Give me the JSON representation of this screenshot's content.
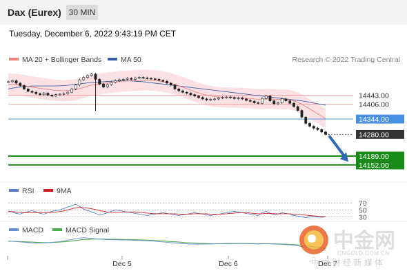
{
  "header": {
    "title": "Dax (Eurex)",
    "interval": "30 MIN"
  },
  "datetime": "Tuesday, December 6, 2022 9:43:19 PM CET",
  "legend": {
    "ma20": "MA 20 + Bollinger Bands",
    "ma50": "MA 50",
    "copyright": "Research © 2022 Trading Central"
  },
  "rsi_legend": {
    "rsi": "RSI",
    "ma9": "9MA"
  },
  "macd_legend": {
    "macd": "MACD",
    "signal": "MACD Signal"
  },
  "colors": {
    "ma20": "#f08080",
    "ma50": "#3b5ea8",
    "band": "#fbd9dd",
    "blue_level": "#4a90e2",
    "green_level": "#1a8a1a",
    "dark_level": "#333333",
    "arrow": "#2d6ab0",
    "rsi_line": "#5b7fd1",
    "ma9_line": "#cc2222",
    "macd_line": "#6a8fd8",
    "signal_line": "#4caf50"
  },
  "watermark": {
    "name": "中金网",
    "url": "CNGOLD.COM.CN",
    "tagline": "中 文 财 经 新 媒 体"
  },
  "chart_data": [
    {
      "type": "line",
      "title": "Dax (Eurex) 30 MIN",
      "ylim": [
        14100,
        14560
      ],
      "x_ticks": [
        "Dec 5",
        "Dec 6",
        "Dec 7"
      ],
      "levels": [
        {
          "value": 14443.0,
          "label": "14443.00",
          "style": "resistance"
        },
        {
          "value": 14406.0,
          "label": "14406.00",
          "style": "resistance"
        },
        {
          "value": 14344.0,
          "label": "14344.00",
          "style": "pivot"
        },
        {
          "value": 14280.0,
          "label": "14280.00",
          "style": "last"
        },
        {
          "value": 14189.0,
          "label": "14189.00",
          "style": "target"
        },
        {
          "value": 14152.0,
          "label": "14152.00",
          "style": "target"
        }
      ],
      "price": [
        14500,
        14504,
        14494,
        14484,
        14470,
        14460,
        14456,
        14450,
        14446,
        14452,
        14444,
        14440,
        14446,
        14448,
        14450,
        14456,
        14470,
        14486,
        14508,
        14518,
        14526,
        14532,
        14510,
        14490,
        14478,
        14488,
        14498,
        14504,
        14508,
        14510,
        14514,
        14510,
        14516,
        14518,
        14516,
        14514,
        14512,
        14510,
        14506,
        14502,
        14494,
        14486,
        14470,
        14462,
        14456,
        14452,
        14446,
        14440,
        14434,
        14428,
        14424,
        14426,
        14428,
        14432,
        14434,
        14436,
        14434,
        14430,
        14432,
        14428,
        14422,
        14418,
        14412,
        14410,
        14430,
        14440,
        14420,
        14408,
        14412,
        14428,
        14420,
        14410,
        14396,
        14380,
        14352,
        14326,
        14314,
        14306,
        14300,
        14290,
        14280
      ],
      "ma20": [
        14490,
        14489,
        14488,
        14486,
        14484,
        14481,
        14478,
        14475,
        14472,
        14470,
        14468,
        14466,
        14464,
        14463,
        14462,
        14463,
        14464,
        14467,
        14471,
        14476,
        14481,
        14486,
        14489,
        14491,
        14493,
        14495,
        14497,
        14499,
        14501,
        14502,
        14503,
        14504,
        14505,
        14506,
        14507,
        14507,
        14506,
        14505,
        14503,
        14500,
        14497,
        14493,
        14488,
        14483,
        14477,
        14471,
        14465,
        14459,
        14453,
        14448,
        14444,
        14441,
        14438,
        14436,
        14435,
        14434,
        14434,
        14433,
        14433,
        14432,
        14431,
        14430,
        14428,
        14427,
        14427,
        14428,
        14428,
        14427,
        14426,
        14426,
        14426,
        14424,
        14420,
        14414,
        14406,
        14396,
        14386,
        14376,
        14366,
        14356,
        14346
      ],
      "ma50": [
        14470,
        14473,
        14476,
        14478,
        14480,
        14481,
        14482,
        14482,
        14482,
        14482,
        14482,
        14482,
        14482,
        14483,
        14484,
        14485,
        14487,
        14489,
        14491,
        14493,
        14495,
        14497,
        14498,
        14499,
        14500,
        14501,
        14502,
        14503,
        14504,
        14504,
        14504,
        14503,
        14502,
        14501,
        14500,
        14498,
        14496,
        14494,
        14492,
        14490,
        14488,
        14486,
        14484,
        14482,
        14480,
        14478,
        14476,
        14474,
        14472,
        14470,
        14468,
        14466,
        14464,
        14462,
        14460,
        14458,
        14456,
        14454,
        14452,
        14450,
        14448,
        14446,
        14444,
        14442,
        14440,
        14438,
        14436,
        14434,
        14432,
        14430,
        14428,
        14426,
        14424,
        14422,
        14420,
        14417,
        14414,
        14411,
        14408,
        14405,
        14402
      ]
    },
    {
      "type": "line",
      "title": "RSI",
      "ylim": [
        25,
        80
      ],
      "reference_levels": [
        {
          "value": 70,
          "label": "70"
        },
        {
          "value": 50,
          "label": "50"
        },
        {
          "value": 30,
          "label": "30"
        }
      ],
      "series": [
        {
          "name": "RSI",
          "values": [
            46,
            44,
            40,
            38,
            42,
            45,
            48,
            44,
            40,
            38,
            42,
            46,
            48,
            50,
            54,
            58,
            62,
            66,
            60,
            52,
            48,
            44,
            40,
            36,
            38,
            42,
            46,
            50,
            48,
            46,
            44,
            42,
            40,
            38,
            36,
            34,
            36,
            38,
            40,
            42,
            40,
            38,
            36,
            34,
            36,
            38,
            40,
            42,
            40,
            38,
            36,
            34,
            36,
            38,
            40,
            42,
            44,
            46,
            44,
            42,
            40,
            38,
            36,
            34,
            42,
            46,
            40,
            36,
            38,
            42,
            40,
            38,
            34,
            32,
            30,
            28,
            30,
            32,
            30,
            29,
            31
          ]
        },
        {
          "name": "9MA",
          "values": [
            45,
            45,
            44,
            43,
            42,
            42,
            42,
            42,
            42,
            42,
            42,
            43,
            44,
            45,
            47,
            50,
            53,
            56,
            57,
            56,
            55,
            53,
            51,
            48,
            46,
            44,
            43,
            43,
            43,
            44,
            44,
            44,
            44,
            43,
            42,
            41,
            40,
            39,
            39,
            39,
            39,
            39,
            39,
            38,
            38,
            38,
            38,
            39,
            39,
            39,
            39,
            38,
            38,
            38,
            38,
            39,
            40,
            41,
            42,
            42,
            42,
            41,
            40,
            39,
            39,
            40,
            40,
            39,
            39,
            39,
            39,
            39,
            38,
            37,
            36,
            35,
            34,
            33,
            32,
            31,
            31
          ]
        }
      ]
    },
    {
      "type": "line",
      "title": "MACD",
      "ylim": [
        -15,
        12
      ],
      "series": [
        {
          "name": "MACD",
          "values": [
            2,
            1.5,
            1,
            0.5,
            0,
            -0.5,
            -0.8,
            -1,
            -1,
            -0.8,
            -0.5,
            0,
            0.5,
            1,
            2,
            3,
            4,
            5,
            6,
            6.5,
            6,
            5.5,
            5,
            4.5,
            4,
            3.8,
            3.6,
            3.5,
            3.4,
            3.3,
            3.2,
            3,
            2.8,
            2.6,
            2.4,
            2.2,
            2,
            1.5,
            1,
            0.5,
            0,
            -0.5,
            -1,
            -1.5,
            -2,
            -2.2,
            -2.4,
            -2.5,
            -2.6,
            -2.6,
            -2.5,
            -2.4,
            -2.2,
            -2,
            -1.8,
            -1.7,
            -1.6,
            -1.6,
            -1.6,
            -1.7,
            -1.8,
            -2,
            -2.2,
            -2.4,
            -2.2,
            -2,
            -2.2,
            -2.5,
            -2.8,
            -3,
            -3.2,
            -3.5,
            -4,
            -5,
            -6,
            -7,
            -8,
            -9,
            -10,
            -10.5,
            -11
          ]
        },
        {
          "name": "MACD Signal",
          "values": [
            1.5,
            1.4,
            1.2,
            1,
            0.8,
            0.5,
            0.3,
            0,
            -0.2,
            -0.3,
            -0.3,
            -0.2,
            0,
            0.3,
            0.7,
            1.2,
            1.8,
            2.5,
            3.2,
            3.8,
            4.2,
            4.5,
            4.6,
            4.6,
            4.5,
            4.4,
            4.3,
            4.2,
            4.1,
            4,
            3.9,
            3.8,
            3.6,
            3.4,
            3.2,
            3,
            2.8,
            2.5,
            2.2,
            1.9,
            1.5,
            1.1,
            0.7,
            0.3,
            -0.1,
            -0.5,
            -0.8,
            -1.1,
            -1.4,
            -1.6,
            -1.8,
            -1.9,
            -2,
            -2,
            -2,
            -1.9,
            -1.9,
            -1.8,
            -1.8,
            -1.8,
            -1.8,
            -1.8,
            -1.9,
            -2,
            -2,
            -2,
            -2.1,
            -2.2,
            -2.3,
            -2.5,
            -2.7,
            -2.9,
            -3.2,
            -3.6,
            -4.1,
            -4.7,
            -5.4,
            -6.1,
            -6.9,
            -7.7,
            -8.5
          ]
        }
      ]
    }
  ]
}
